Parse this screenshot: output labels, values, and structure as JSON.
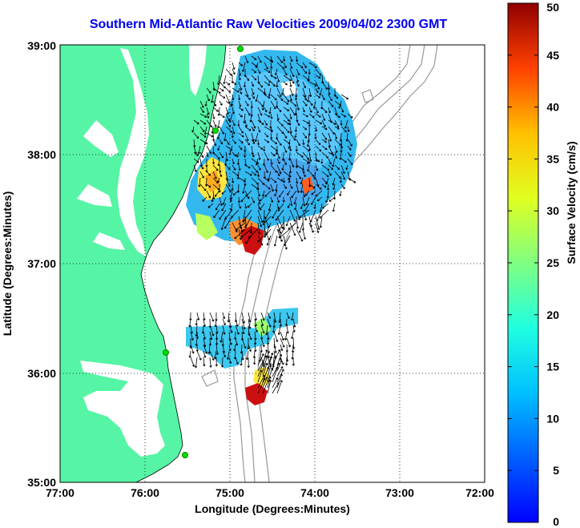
{
  "title": "Southern Mid-Atlantic Raw Velocities 2009/04/02 2300 GMT",
  "x_axis": {
    "label": "Longitude (Degrees:Minutes)",
    "ticks": [
      "77:00",
      "76:00",
      "75:00",
      "74:00",
      "73:00",
      "72:00"
    ]
  },
  "y_axis": {
    "label": "Latitude (Degrees:Minutes)",
    "ticks": [
      "39:00",
      "38:00",
      "37:00",
      "36:00",
      "35:00"
    ]
  },
  "colorbar": {
    "label": "Surface Velocity (cm/s)",
    "ticks": [
      "0",
      "5",
      "10",
      "15",
      "20",
      "25",
      "30",
      "35",
      "40",
      "45",
      "50"
    ],
    "min": 0,
    "max": 50,
    "colormap": "jet"
  },
  "colors": {
    "land": "#55f5a5",
    "title": "#0000ee",
    "station": "#00dd00",
    "bathymetry": "#999999",
    "arrow": "#000000"
  }
}
